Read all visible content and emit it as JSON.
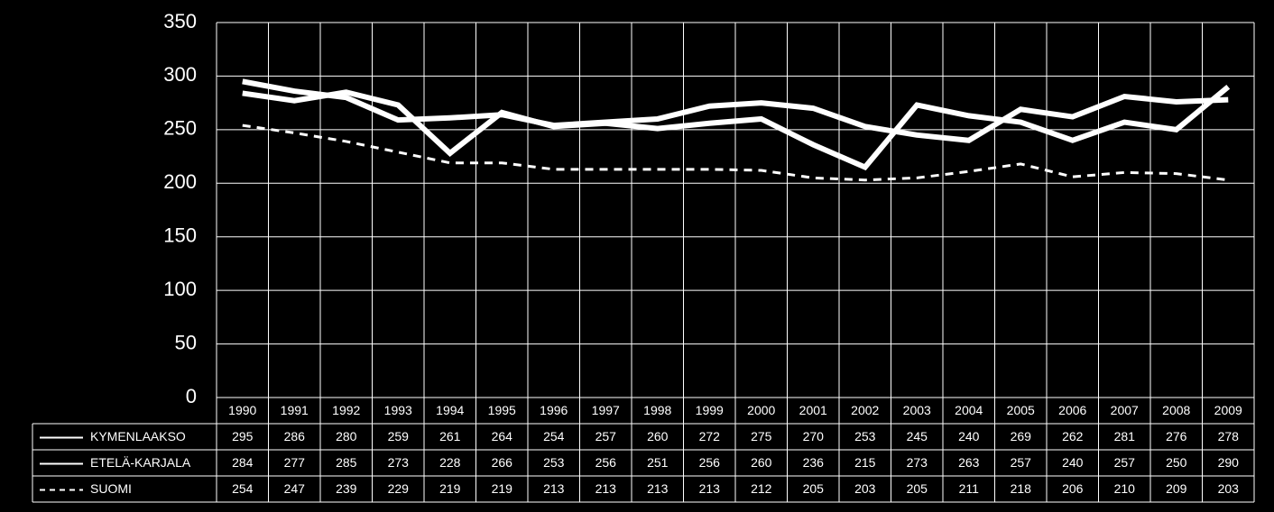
{
  "chart_data": {
    "type": "line",
    "categories": [
      "1990",
      "1991",
      "1992",
      "1993",
      "1994",
      "1995",
      "1996",
      "1997",
      "1998",
      "1999",
      "2000",
      "2001",
      "2002",
      "2003",
      "2004",
      "2005",
      "2006",
      "2007",
      "2008",
      "2009"
    ],
    "series": [
      {
        "name": "KYMENLAAKSO",
        "color": "#ffffff",
        "line_style": "solid",
        "values": [
          295,
          286,
          280,
          259,
          261,
          264,
          254,
          257,
          260,
          272,
          275,
          270,
          253,
          245,
          240,
          269,
          262,
          281,
          276,
          278
        ]
      },
      {
        "name": "ETELÄ-KARJALA",
        "color": "#ffffff",
        "line_style": "solid",
        "values": [
          284,
          277,
          285,
          273,
          228,
          266,
          253,
          256,
          251,
          256,
          260,
          236,
          215,
          273,
          263,
          257,
          240,
          257,
          250,
          290
        ]
      },
      {
        "name": "SUOMI",
        "color": "#ffffff",
        "line_style": "dashed",
        "values": [
          254,
          247,
          239,
          229,
          219,
          219,
          213,
          213,
          213,
          213,
          212,
          205,
          203,
          205,
          211,
          218,
          206,
          210,
          209,
          203
        ]
      }
    ],
    "ylim": [
      0,
      350
    ],
    "yticks": [
      0,
      50,
      100,
      150,
      200,
      250,
      300,
      350
    ],
    "grid": true,
    "data_table": true
  }
}
